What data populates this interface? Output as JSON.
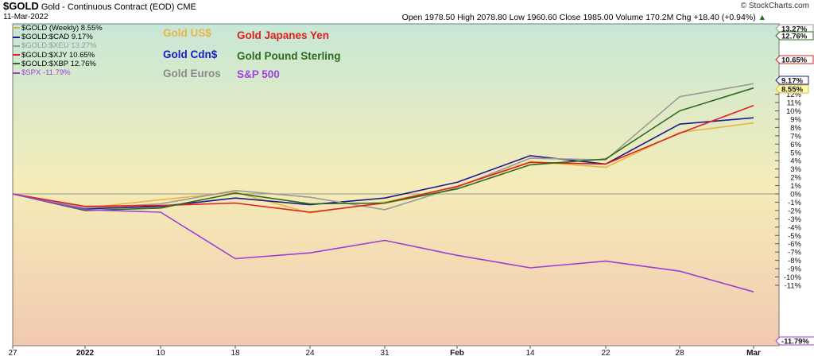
{
  "header": {
    "symbol": "$GOLD",
    "name": "Gold - Continuous Contract (EOD)",
    "exchange": "CME",
    "date": "11-Mar-2022",
    "brand": "© StockCharts.com",
    "open_label": "Open",
    "open": "1978.50",
    "high_label": "High",
    "high": "2078.80",
    "low_label": "Low",
    "low": "1960.60",
    "close_label": "Close",
    "close": "1985.00",
    "volume_label": "Volume",
    "volume": "170.2M",
    "chg_label": "Chg",
    "chg": "+18.40 (+0.94%)",
    "chg_arrow": "▲"
  },
  "legend": [
    {
      "label": "$GOLD (Weekly) 8.55%",
      "color": "#e0b050"
    },
    {
      "label": "$GOLD:$CAD 9.17%",
      "color": "#1a1a8c"
    },
    {
      "label": "$GOLD:$XEU 13.27%",
      "color": "#9a9a9a"
    },
    {
      "label": "$GOLD:$XJY 10.65%",
      "color": "#e02020"
    },
    {
      "label": "$GOLD:$XBP 12.76%",
      "color": "#2d6a1f"
    },
    {
      "label": "$SPX -11.79%",
      "color": "#9b3fd6"
    }
  ],
  "annotations": {
    "gold_us": {
      "text": "Gold US$",
      "color": "#e8b545"
    },
    "gold_jpy": {
      "text": "Gold Japanes Yen",
      "color": "#e02020"
    },
    "gold_cad": {
      "text": "Gold Cdn$",
      "color": "#1a1acc"
    },
    "gold_gbp": {
      "text": "Gold Pound Sterling",
      "color": "#2d6a1f"
    },
    "gold_eur": {
      "text": "Gold Euros",
      "color": "#8a8a8a"
    },
    "spx": {
      "text": "S&P 500",
      "color": "#a040e0"
    }
  },
  "chart_data": {
    "type": "line",
    "categories": [
      "27",
      "2022",
      "10",
      "18",
      "24",
      "31",
      "Feb",
      "14",
      "22",
      "28",
      "Mar"
    ],
    "ylim": [
      -12,
      13.5
    ],
    "y_ticks": [
      "12%",
      "11%",
      "10%",
      "9%",
      "8%",
      "7%",
      "6%",
      "5%",
      "4%",
      "3%",
      "2%",
      "1%",
      "0%",
      "-1%",
      "-2%",
      "-3%",
      "-4%",
      "-5%",
      "-6%",
      "-7%",
      "-8%",
      "-9%",
      "-10%",
      "-11%"
    ],
    "y_tick_values": [
      12,
      11,
      10,
      9,
      8,
      7,
      6,
      5,
      4,
      3,
      2,
      1,
      0,
      -1,
      -2,
      -3,
      -4,
      -5,
      -6,
      -7,
      -8,
      -9,
      -10,
      -11
    ],
    "series": [
      {
        "name": "$GOLD (Weekly)",
        "color": "#e8b545",
        "end_label": "8.55%",
        "end_bg": "#ffffaa",
        "values": [
          0,
          -1.7,
          -0.7,
          0.2,
          -2.3,
          -1.0,
          0.9,
          3.9,
          3.2,
          7.4,
          8.55
        ]
      },
      {
        "name": "$GOLD:$CAD",
        "color": "#1a1a8c",
        "end_label": "9.17%",
        "end_bg": "#ffffff",
        "values": [
          0,
          -1.8,
          -1.5,
          -0.5,
          -1.3,
          -0.5,
          1.4,
          4.6,
          3.6,
          8.4,
          9.17
        ]
      },
      {
        "name": "$GOLD:$XEU",
        "color": "#9a9a9a",
        "end_label": "13.27%",
        "end_bg": "#ffffff",
        "values": [
          0,
          -1.7,
          -1.2,
          0.4,
          -0.4,
          -1.9,
          0.8,
          4.3,
          4.1,
          11.7,
          13.27
        ]
      },
      {
        "name": "$GOLD:$XJY",
        "color": "#e02020",
        "end_label": "10.65%",
        "end_bg": "#ffffff",
        "values": [
          0,
          -1.5,
          -1.4,
          -1.1,
          -2.2,
          -1.1,
          0.9,
          3.8,
          3.6,
          7.3,
          10.65
        ]
      },
      {
        "name": "$GOLD:$XBP",
        "color": "#2d6a1f",
        "end_label": "12.76%",
        "end_bg": "#ffffff",
        "values": [
          0,
          -2.0,
          -1.7,
          0.1,
          -1.2,
          -1.1,
          0.6,
          3.5,
          4.2,
          10.0,
          12.76
        ]
      },
      {
        "name": "$SPX",
        "color": "#9b3fd6",
        "end_label": "-11.79%",
        "end_bg": "#ffffff",
        "values": [
          0,
          -1.9,
          -2.2,
          -7.8,
          -7.1,
          -5.6,
          -7.4,
          -8.9,
          -8.1,
          -9.3,
          -11.79
        ]
      }
    ]
  }
}
